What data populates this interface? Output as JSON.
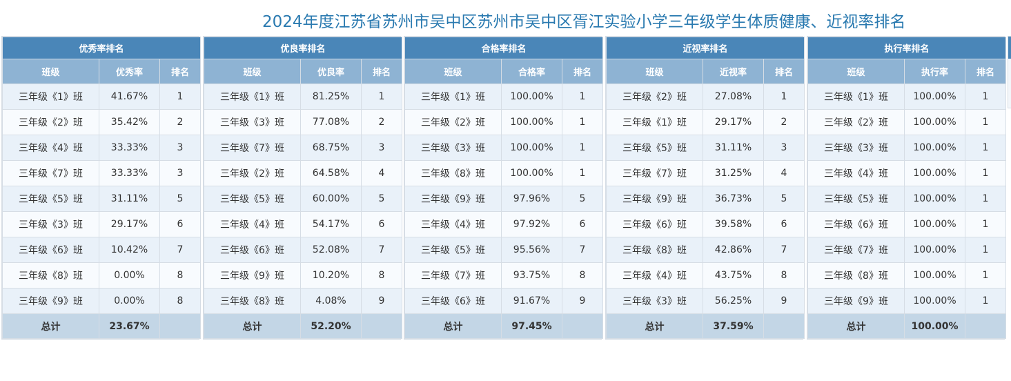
{
  "title": "2024年度江苏省苏州市吴中区苏州市吴中区胥江实验小学三年级学生体质健康、近视率排名",
  "panels": [
    {
      "title": "优秀率排名",
      "headers": [
        "班级",
        "优秀率",
        "排名"
      ],
      "rows": [
        [
          "三年级《1》班",
          "41.67%",
          "1"
        ],
        [
          "三年级《2》班",
          "35.42%",
          "2"
        ],
        [
          "三年级《4》班",
          "33.33%",
          "3"
        ],
        [
          "三年级《7》班",
          "33.33%",
          "3"
        ],
        [
          "三年级《5》班",
          "31.11%",
          "5"
        ],
        [
          "三年级《3》班",
          "29.17%",
          "6"
        ],
        [
          "三年级《6》班",
          "10.42%",
          "7"
        ],
        [
          "三年级《8》班",
          "0.00%",
          "8"
        ],
        [
          "三年级《9》班",
          "0.00%",
          "8"
        ]
      ],
      "total_label": "总计",
      "total_value": "23.67%"
    },
    {
      "title": "优良率排名",
      "headers": [
        "班级",
        "优良率",
        "排名"
      ],
      "rows": [
        [
          "三年级《1》班",
          "81.25%",
          "1"
        ],
        [
          "三年级《3》班",
          "77.08%",
          "2"
        ],
        [
          "三年级《7》班",
          "68.75%",
          "3"
        ],
        [
          "三年级《2》班",
          "64.58%",
          "4"
        ],
        [
          "三年级《5》班",
          "60.00%",
          "5"
        ],
        [
          "三年级《4》班",
          "54.17%",
          "6"
        ],
        [
          "三年级《6》班",
          "52.08%",
          "7"
        ],
        [
          "三年级《9》班",
          "10.20%",
          "8"
        ],
        [
          "三年级《8》班",
          "4.08%",
          "9"
        ]
      ],
      "total_label": "总计",
      "total_value": "52.20%"
    },
    {
      "title": "合格率排名",
      "headers": [
        "班级",
        "合格率",
        "排名"
      ],
      "rows": [
        [
          "三年级《1》班",
          "100.00%",
          "1"
        ],
        [
          "三年级《2》班",
          "100.00%",
          "1"
        ],
        [
          "三年级《3》班",
          "100.00%",
          "1"
        ],
        [
          "三年级《8》班",
          "100.00%",
          "1"
        ],
        [
          "三年级《9》班",
          "97.96%",
          "5"
        ],
        [
          "三年级《4》班",
          "97.92%",
          "6"
        ],
        [
          "三年级《5》班",
          "95.56%",
          "7"
        ],
        [
          "三年级《7》班",
          "93.75%",
          "8"
        ],
        [
          "三年级《6》班",
          "91.67%",
          "9"
        ]
      ],
      "total_label": "总计",
      "total_value": "97.45%"
    },
    {
      "title": "近视率排名",
      "headers": [
        "班级",
        "近视率",
        "排名"
      ],
      "rows": [
        [
          "三年级《2》班",
          "27.08%",
          "1"
        ],
        [
          "三年级《1》班",
          "29.17%",
          "2"
        ],
        [
          "三年级《5》班",
          "31.11%",
          "3"
        ],
        [
          "三年级《7》班",
          "31.25%",
          "4"
        ],
        [
          "三年级《9》班",
          "36.73%",
          "5"
        ],
        [
          "三年级《6》班",
          "39.58%",
          "6"
        ],
        [
          "三年级《8》班",
          "42.86%",
          "7"
        ],
        [
          "三年级《4》班",
          "43.75%",
          "8"
        ],
        [
          "三年级《3》班",
          "56.25%",
          "9"
        ]
      ],
      "total_label": "总计",
      "total_value": "37.59%"
    },
    {
      "title": "执行率排名",
      "headers": [
        "班级",
        "执行率",
        "排名"
      ],
      "rows": [
        [
          "三年级《1》班",
          "100.00%",
          "1"
        ],
        [
          "三年级《2》班",
          "100.00%",
          "1"
        ],
        [
          "三年级《3》班",
          "100.00%",
          "1"
        ],
        [
          "三年级《4》班",
          "100.00%",
          "1"
        ],
        [
          "三年级《5》班",
          "100.00%",
          "1"
        ],
        [
          "三年级《6》班",
          "100.00%",
          "1"
        ],
        [
          "三年级《7》班",
          "100.00%",
          "1"
        ],
        [
          "三年级《8》班",
          "100.00%",
          "1"
        ],
        [
          "三年级《9》班",
          "100.00%",
          "1"
        ]
      ],
      "total_label": "总计",
      "total_value": "100.00%"
    }
  ]
}
